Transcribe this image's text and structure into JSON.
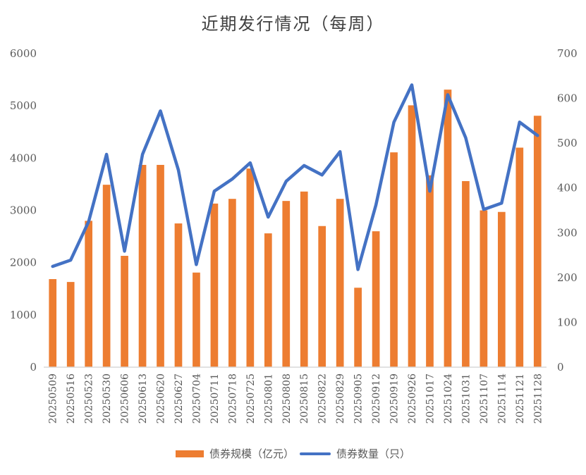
{
  "chart_data": {
    "type": "bar",
    "combo": "bar+line",
    "title": "近期发行情况（每周）",
    "xlabel": "",
    "ylabel": "",
    "y2label": "",
    "ylim": [
      0,
      6000
    ],
    "y2lim": [
      0,
      700
    ],
    "yticks": [
      0,
      1000,
      2000,
      3000,
      4000,
      5000,
      6000
    ],
    "y2ticks": [
      0,
      100,
      200,
      300,
      400,
      500,
      600,
      700
    ],
    "grid": false,
    "legend_position": "bottom",
    "categories": [
      "20250509",
      "20250516",
      "20250523",
      "20250530",
      "20250606",
      "20250613",
      "20250620",
      "20250627",
      "20250704",
      "20250711",
      "20250718",
      "20250725",
      "20250801",
      "20250808",
      "20250815",
      "20250822",
      "20250829",
      "20250905",
      "20250912",
      "20250919",
      "20250926",
      "20251017",
      "20251024",
      "20251031",
      "20251107",
      "20251114",
      "20251121",
      "20251128"
    ],
    "series": [
      {
        "name": "债券规模（亿元）",
        "type": "bar",
        "axis": "left",
        "color": "#ED7D31",
        "values": [
          1685,
          1630,
          2800,
          3490,
          2130,
          3870,
          3870,
          2750,
          1810,
          3130,
          3220,
          3800,
          2560,
          3180,
          3360,
          2700,
          3220,
          1520,
          2600,
          4110,
          5010,
          3670,
          5310,
          3560,
          3000,
          2970,
          4200,
          4810
        ]
      },
      {
        "name": "债券数量（只）",
        "type": "line",
        "axis": "right",
        "color": "#4472C4",
        "values": [
          225,
          239,
          325,
          475,
          259,
          475,
          572,
          440,
          229,
          393,
          420,
          456,
          335,
          415,
          450,
          429,
          481,
          218,
          362,
          547,
          630,
          393,
          608,
          512,
          352,
          366,
          547,
          517
        ]
      }
    ]
  },
  "legend": {
    "bar_label": "债券规模（亿元）",
    "line_label": "债券数量（只）"
  }
}
